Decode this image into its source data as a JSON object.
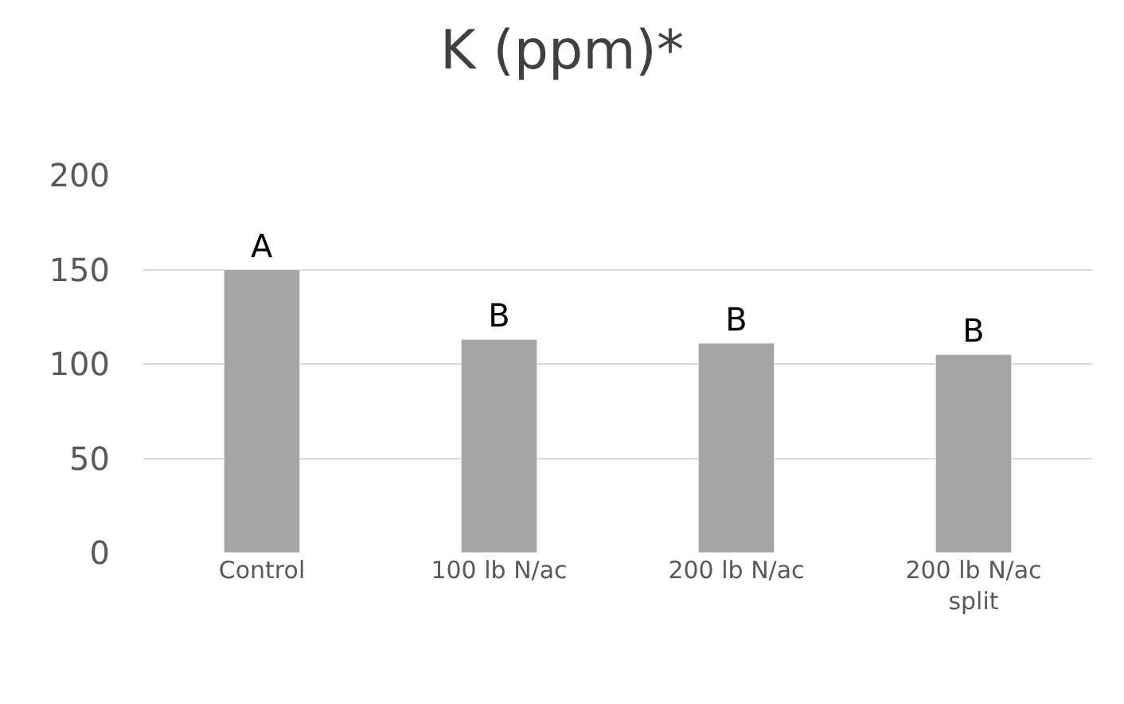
{
  "chart_data": {
    "type": "bar",
    "title": "K (ppm)*",
    "categories": [
      "Control",
      "100 lb N/ac",
      "200 lb N/ac",
      "200 lb N/ac split"
    ],
    "values": [
      150,
      113,
      111,
      105
    ],
    "value_labels": [
      "A",
      "B",
      "B",
      "B"
    ],
    "color": "#a5a5a5",
    "ylim": [
      0,
      200
    ],
    "yticks": [
      0,
      50,
      100,
      150,
      200
    ],
    "grid": "y",
    "legend": false
  }
}
